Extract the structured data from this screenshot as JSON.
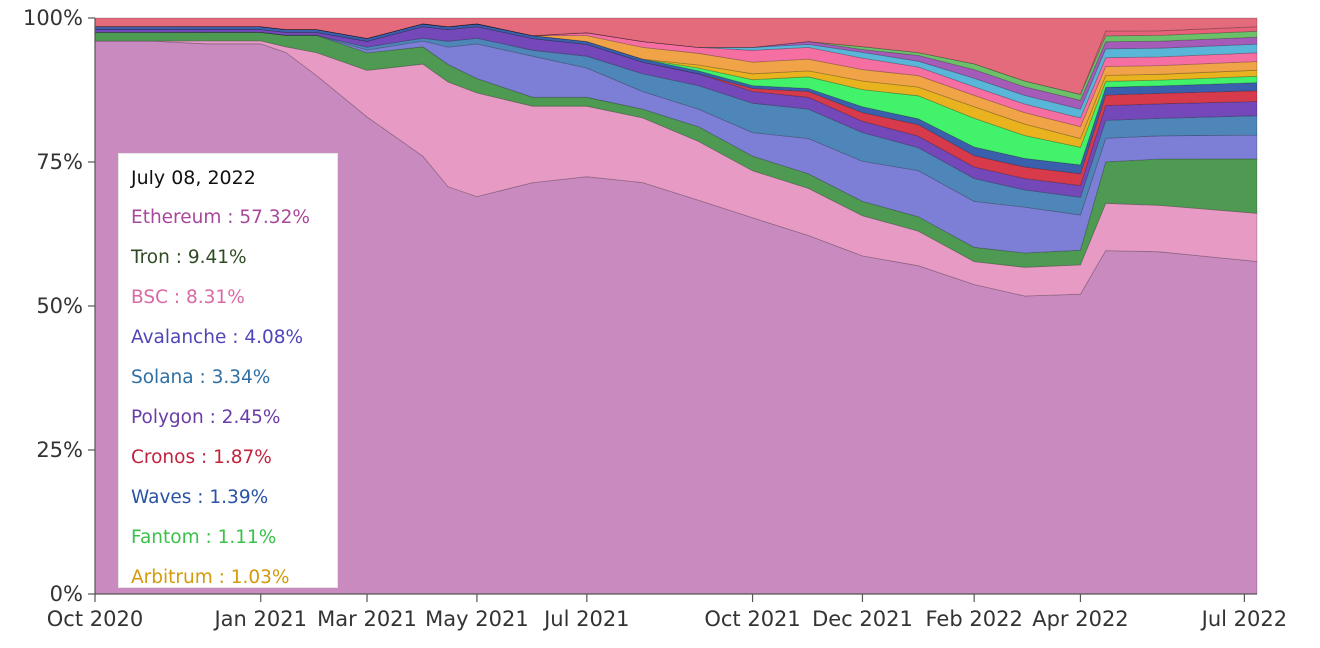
{
  "chart_data": {
    "type": "area",
    "stacking": "percent",
    "y_ticks": [
      "0%",
      "25%",
      "50%",
      "75%",
      "100%"
    ],
    "ylim": [
      0,
      100
    ],
    "x_ticks": [
      {
        "date": "2020-10-01",
        "label": "Oct 2020"
      },
      {
        "date": "2021-01-01",
        "label": "Jan 2021"
      },
      {
        "date": "2021-03-01",
        "label": "Mar 2021"
      },
      {
        "date": "2021-05-01",
        "label": "May 2021"
      },
      {
        "date": "2021-07-01",
        "label": "Jul 2021"
      },
      {
        "date": "2021-10-01",
        "label": "Oct 2021"
      },
      {
        "date": "2021-12-01",
        "label": "Dec 2021"
      },
      {
        "date": "2022-02-01",
        "label": "Feb 2022"
      },
      {
        "date": "2022-04-01",
        "label": "Apr 2022"
      },
      {
        "date": "2022-07-01",
        "label": "Jul 2022"
      }
    ],
    "xlim": [
      "2020-10-01",
      "2022-07-08"
    ],
    "grid": false,
    "x": [
      "2020-10-01",
      "2020-11-01",
      "2020-12-01",
      "2021-01-01",
      "2021-01-15",
      "2021-02-01",
      "2021-03-01",
      "2021-04-01",
      "2021-04-15",
      "2021-05-01",
      "2021-06-01",
      "2021-07-01",
      "2021-08-01",
      "2021-09-01",
      "2021-10-01",
      "2021-11-01",
      "2021-12-01",
      "2022-01-01",
      "2022-02-01",
      "2022-03-01",
      "2022-04-01",
      "2022-04-15",
      "2022-05-15",
      "2022-07-08"
    ],
    "series": [
      {
        "name": "Ethereum",
        "color": "#c98ac0",
        "values": [
          96,
          96,
          96,
          96,
          94,
          90,
          82,
          76,
          70,
          69,
          70,
          71,
          70,
          67,
          64,
          61,
          59,
          57,
          54,
          52,
          51,
          58,
          59,
          57.32
        ]
      },
      {
        "name": "BSC",
        "color": "#e79ac4",
        "values": [
          0,
          0,
          0.5,
          0.5,
          1,
          4,
          8,
          16,
          18,
          18,
          13,
          12,
          11,
          10,
          8,
          8,
          7,
          6,
          4,
          5,
          5,
          8,
          8,
          8.31
        ]
      },
      {
        "name": "Tron",
        "color": "#4f9a52",
        "values": [
          1.5,
          1.5,
          1.5,
          1.5,
          2,
          3,
          3,
          3,
          3,
          2.5,
          1.5,
          1.5,
          1.5,
          2.5,
          2.5,
          2.5,
          2.5,
          2.5,
          2.5,
          2.5,
          2.5,
          7,
          8,
          9.41
        ]
      },
      {
        "name": "Avalanche",
        "color": "#7d7ed6",
        "values": [
          0,
          0,
          0,
          0,
          0,
          0,
          0.5,
          1,
          3,
          6,
          7,
          5,
          3,
          3,
          4,
          6,
          7,
          8,
          8,
          8,
          6,
          4,
          4,
          4.08
        ]
      },
      {
        "name": "Solana",
        "color": "#4f86ba",
        "values": [
          0,
          0,
          0,
          0,
          0,
          0,
          0.5,
          0.5,
          1,
          1,
          1,
          2,
          3,
          4,
          5,
          5,
          5,
          4,
          4,
          3,
          3,
          3,
          3,
          3.34
        ]
      },
      {
        "name": "Polygon",
        "color": "#7448b8",
        "values": [
          0.5,
          0.5,
          0.5,
          0.5,
          0.5,
          0.5,
          1,
          2,
          2,
          2,
          2,
          2,
          2,
          2,
          2,
          2,
          2,
          2,
          2,
          2,
          2,
          2.5,
          2.5,
          2.45
        ]
      },
      {
        "name": "Cronos",
        "color": "#d63a4b",
        "values": [
          0,
          0,
          0,
          0,
          0,
          0,
          0,
          0,
          0,
          0,
          0,
          0,
          0,
          0,
          0.5,
          1,
          1.5,
          2,
          2,
          2,
          2,
          1.8,
          1.8,
          1.87
        ]
      },
      {
        "name": "Waves",
        "color": "#3a5fad",
        "values": [
          0.5,
          0.5,
          0.5,
          0.5,
          0.5,
          0.5,
          0.5,
          0.5,
          0.5,
          0.5,
          0.5,
          0.5,
          0.5,
          0.5,
          0.5,
          0.5,
          1,
          1,
          1.5,
          1.5,
          1.5,
          1.3,
          1.3,
          1.39
        ]
      },
      {
        "name": "Fantom",
        "color": "#42f26a",
        "values": [
          0,
          0,
          0,
          0,
          0,
          0,
          0,
          0,
          0,
          0,
          0,
          0,
          0,
          0.5,
          1,
          2,
          3,
          4,
          5,
          4,
          3,
          1,
          1,
          1.11
        ]
      },
      {
        "name": "Arbitrum",
        "color": "#e8b31f",
        "values": [
          0,
          0,
          0,
          0,
          0,
          0,
          0,
          0,
          0,
          0,
          0,
          0,
          0,
          0.5,
          1,
          1,
          1.5,
          1.5,
          2,
          2,
          1.5,
          1,
          1,
          1.03
        ]
      }
    ],
    "other_chains": [
      {
        "color": "#f0a347",
        "values": [
          0,
          0,
          0,
          0,
          0,
          0,
          0,
          0,
          0,
          0,
          0,
          1,
          2,
          2,
          2,
          2,
          2,
          2,
          2,
          2,
          2,
          1.5,
          1.5,
          1.5
        ]
      },
      {
        "color": "#f56fa2",
        "values": [
          0,
          0,
          0,
          0,
          0,
          0,
          0,
          0,
          0,
          0,
          0,
          0.5,
          1,
          1,
          2,
          2,
          2,
          1.5,
          1.5,
          1.5,
          1.5,
          1.5,
          1.5,
          1.5
        ]
      },
      {
        "color": "#5ab6d9",
        "values": [
          0,
          0,
          0,
          0,
          0,
          0,
          0,
          0,
          0,
          0,
          0,
          0,
          0,
          0,
          0.5,
          0.5,
          1,
          1,
          1.5,
          1.5,
          1.5,
          1.5,
          1.5,
          1.5
        ]
      },
      {
        "color": "#a55bb8",
        "values": [
          0,
          0,
          0,
          0,
          0,
          0,
          0,
          0,
          0,
          0,
          0,
          0,
          0,
          0,
          0,
          0.5,
          0.5,
          1,
          1.5,
          1.5,
          1.5,
          1.2,
          1.2,
          1.2
        ]
      },
      {
        "color": "#6cc06a",
        "values": [
          0,
          0,
          0,
          0,
          0,
          0,
          0,
          0,
          0,
          0,
          0,
          0,
          0,
          0,
          0,
          0,
          0.5,
          0.5,
          1,
          1,
          1,
          1,
          1,
          1
        ]
      },
      {
        "color": "#e8607a",
        "values": [
          0,
          0,
          0,
          0,
          0,
          0,
          0,
          0,
          0,
          0,
          0,
          0,
          0,
          0,
          0,
          0,
          0,
          0,
          0,
          0,
          0,
          0.8,
          0.8,
          0.8
        ]
      },
      {
        "color": "#e36b7c",
        "values": [
          1.5,
          1.5,
          1.5,
          1.5,
          2,
          2,
          3.5,
          1,
          1.5,
          1,
          3,
          2.5,
          4,
          5,
          5,
          4,
          5,
          6,
          8,
          11,
          13,
          2.2,
          2.2,
          1.5
        ]
      }
    ],
    "tooltip": {
      "date": "July 08, 2022",
      "entries": [
        {
          "label": "Ethereum : 57.32%",
          "color": "#a8479b"
        },
        {
          "label": "Tron : 9.41%",
          "color": "#2f4a24"
        },
        {
          "label": "BSC : 8.31%",
          "color": "#d96aa3"
        },
        {
          "label": "Avalanche : 4.08%",
          "color": "#4e46b8"
        },
        {
          "label": "Solana : 3.34%",
          "color": "#2f6fa3"
        },
        {
          "label": "Polygon : 2.45%",
          "color": "#6a3ca8"
        },
        {
          "label": "Cronos : 1.87%",
          "color": "#c0243c"
        },
        {
          "label": "Waves : 1.39%",
          "color": "#2a53a6"
        },
        {
          "label": "Fantom : 1.11%",
          "color": "#39c24a"
        },
        {
          "label": "Arbitrum : 1.03%",
          "color": "#d49a0b"
        }
      ]
    }
  }
}
